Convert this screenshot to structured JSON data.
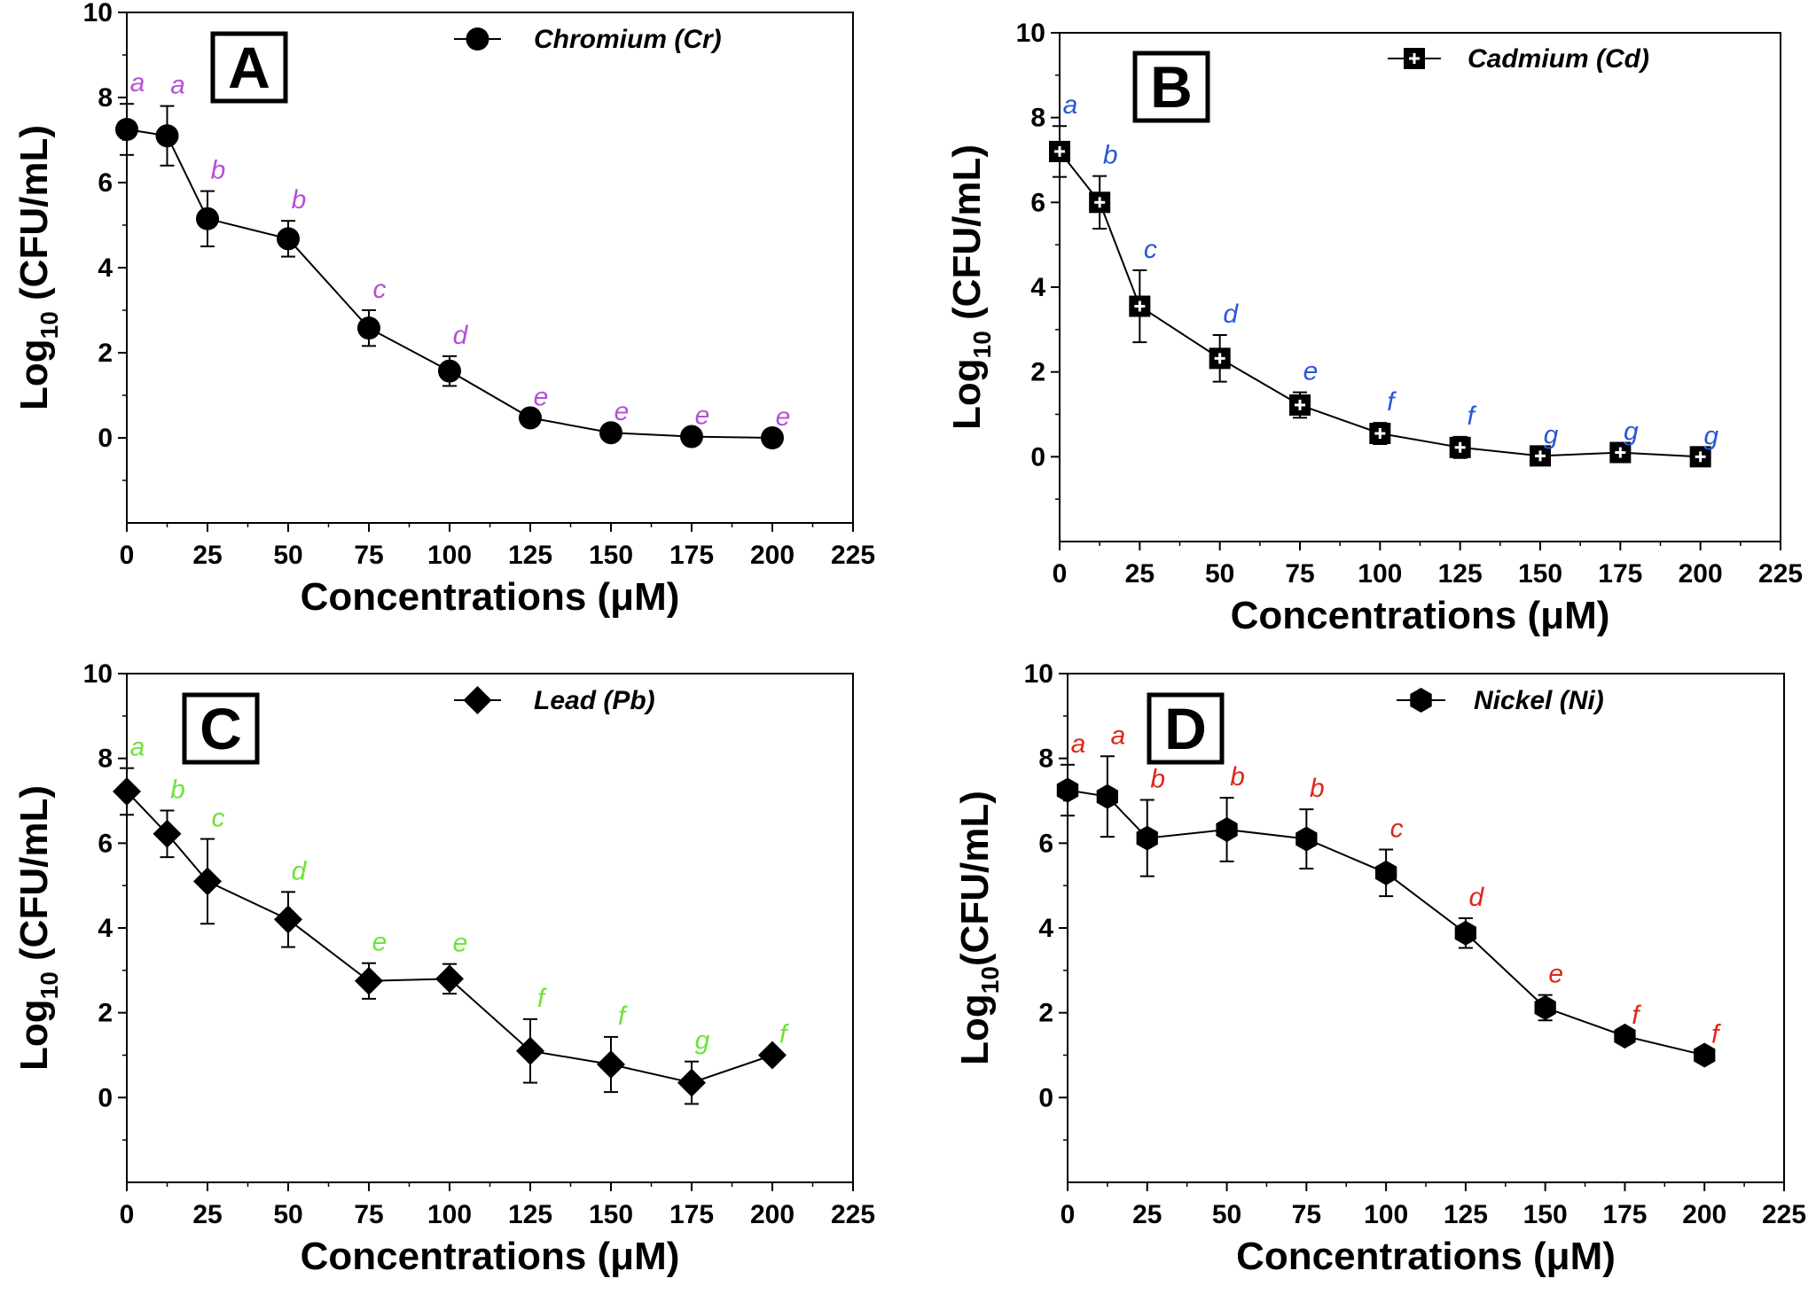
{
  "chart_data": [
    {
      "panel": "A",
      "type": "line",
      "marker": "circle",
      "legend": "Chromium (Cr)",
      "xlabel": "Concentrations (μM)",
      "ylabel": "Log10 (CFU/mL)",
      "ylabel_main": "Log",
      "ylabel_sub": "10",
      "ylabel_rest": " (CFU/mL)",
      "xlim": [
        0,
        225
      ],
      "ylim": [
        -2,
        10
      ],
      "xticks": [
        0,
        25,
        50,
        75,
        100,
        125,
        150,
        175,
        200,
        225
      ],
      "yticks": [
        0,
        2,
        4,
        6,
        8,
        10
      ],
      "letter_color": "#b54fd8",
      "x": [
        0,
        12.5,
        25,
        50,
        75,
        100,
        125,
        150,
        175,
        200
      ],
      "y": [
        7.25,
        7.1,
        5.15,
        4.68,
        2.58,
        1.57,
        0.47,
        0.12,
        0.03,
        0.0
      ],
      "err": [
        0.6,
        0.7,
        0.65,
        0.42,
        0.42,
        0.35,
        0.0,
        0.0,
        0.0,
        0.0
      ],
      "letters": [
        "a",
        "a",
        "b",
        "b",
        "c",
        "d",
        "e",
        "e",
        "e",
        "e"
      ]
    },
    {
      "panel": "B",
      "type": "line",
      "marker": "square-cross",
      "legend": "Cadmium (Cd)",
      "xlabel": "Concentrations (μM)",
      "ylabel": "Log10 (CFU/mL)",
      "ylabel_main": "Log",
      "ylabel_sub": "10",
      "ylabel_rest": " (CFU/mL)",
      "xlim": [
        0,
        225
      ],
      "ylim": [
        -2,
        10
      ],
      "xticks": [
        0,
        25,
        50,
        75,
        100,
        125,
        150,
        175,
        200,
        225
      ],
      "yticks": [
        0,
        2,
        4,
        6,
        8,
        10
      ],
      "letter_color": "#2b55d6",
      "x": [
        0,
        12.5,
        25,
        50,
        75,
        100,
        125,
        150,
        175,
        200
      ],
      "y": [
        7.2,
        6.0,
        3.55,
        2.32,
        1.22,
        0.55,
        0.22,
        0.02,
        0.1,
        0.0
      ],
      "err": [
        0.6,
        0.62,
        0.85,
        0.55,
        0.3,
        0.25,
        0.25,
        0.0,
        0.0,
        0.0
      ],
      "letters": [
        "a",
        "b",
        "c",
        "d",
        "e",
        "f",
        "f",
        "g",
        "g",
        "g"
      ]
    },
    {
      "panel": "C",
      "type": "line",
      "marker": "diamond",
      "legend": "Lead (Pb)",
      "xlabel": "Concentrations (μM)",
      "ylabel": "Log10 (CFU/mL)",
      "ylabel_main": "Log",
      "ylabel_sub": "10",
      "ylabel_rest": " (CFU/mL)",
      "xlim": [
        0,
        225
      ],
      "ylim": [
        -2,
        10
      ],
      "xticks": [
        0,
        25,
        50,
        75,
        100,
        125,
        150,
        175,
        200,
        225
      ],
      "yticks": [
        0,
        2,
        4,
        6,
        8,
        10
      ],
      "letter_color": "#6ee23a",
      "x": [
        0,
        12.5,
        25,
        50,
        75,
        100,
        125,
        150,
        175,
        200
      ],
      "y": [
        7.22,
        6.22,
        5.1,
        4.2,
        2.75,
        2.8,
        1.1,
        0.78,
        0.35,
        1.0
      ],
      "err": [
        0.55,
        0.55,
        1.0,
        0.65,
        0.42,
        0.35,
        0.75,
        0.65,
        0.5,
        0.0
      ],
      "letters": [
        "a",
        "b",
        "c",
        "d",
        "e",
        "e",
        "f",
        "f",
        "g",
        "f"
      ]
    },
    {
      "panel": "D",
      "type": "line",
      "marker": "hexagon",
      "legend": "Nickel (Ni)",
      "xlabel": "Concentrations (μM)",
      "ylabel": "Log10(CFU/mL)",
      "ylabel_main": "Log",
      "ylabel_sub": "10",
      "ylabel_rest": "(CFU/mL)",
      "xlim": [
        0,
        225
      ],
      "ylim": [
        -2,
        10
      ],
      "xticks": [
        0,
        25,
        50,
        75,
        100,
        125,
        150,
        175,
        200,
        225
      ],
      "yticks": [
        0,
        2,
        4,
        6,
        8,
        10
      ],
      "letter_color": "#e0241b",
      "x": [
        0,
        12.5,
        25,
        50,
        75,
        100,
        125,
        150,
        175,
        200
      ],
      "y": [
        7.25,
        7.1,
        6.12,
        6.32,
        6.1,
        5.3,
        3.88,
        2.12,
        1.45,
        1.0
      ],
      "err": [
        0.6,
        0.95,
        0.9,
        0.75,
        0.7,
        0.55,
        0.35,
        0.3,
        0.0,
        0.0
      ],
      "letters": [
        "a",
        "a",
        "b",
        "b",
        "b",
        "c",
        "d",
        "e",
        "f",
        "f"
      ]
    }
  ]
}
